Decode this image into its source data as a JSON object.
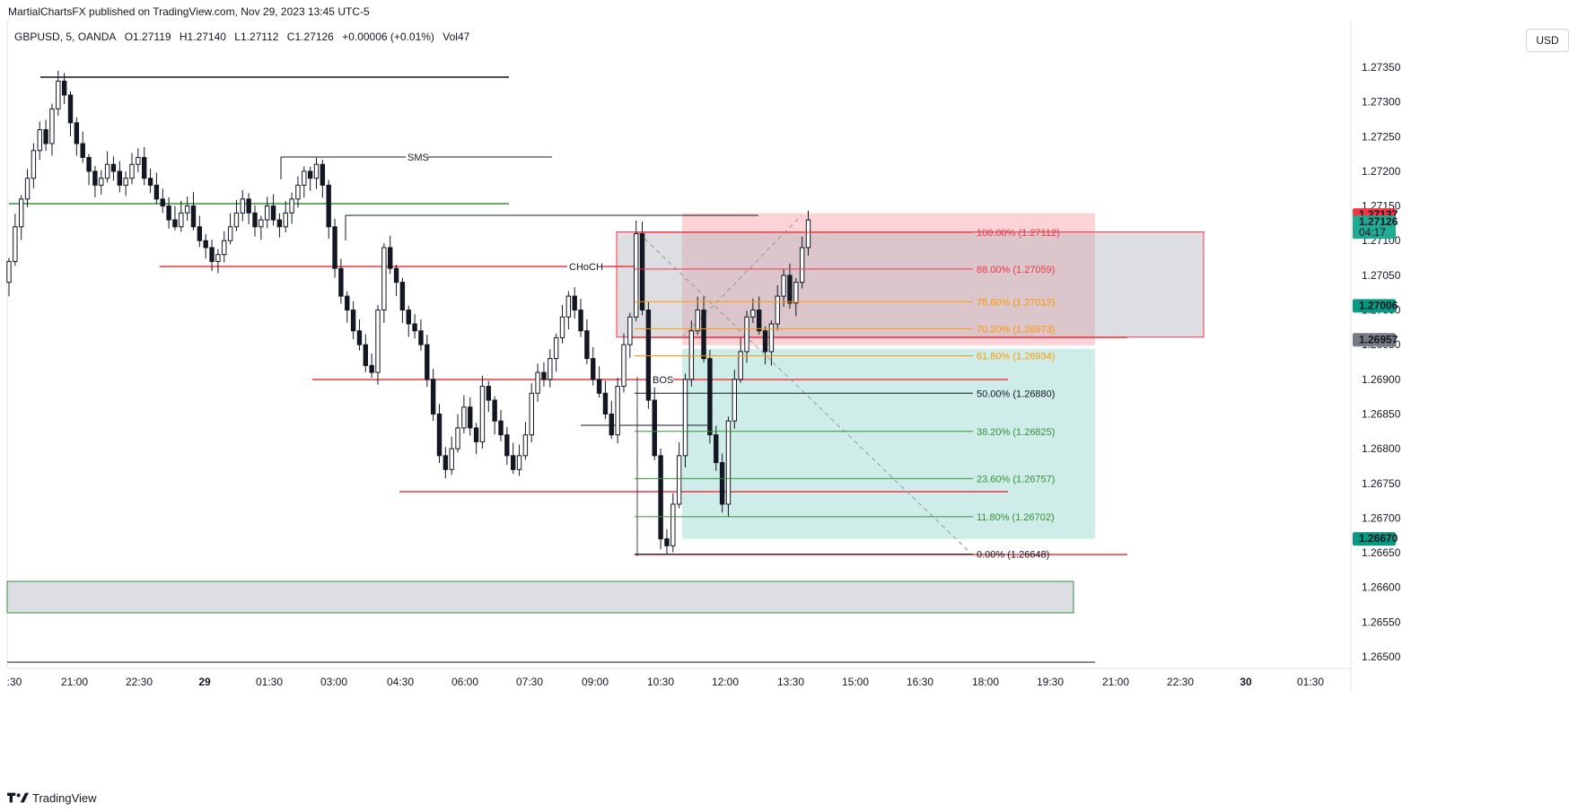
{
  "header": {
    "publisher": "MartialChartsFX published on TradingView.com, Nov 29, 2023 13:45 UTC-5"
  },
  "legend": {
    "symbol": "GBPUSD, 5, OANDA",
    "open": "O1.27119",
    "high": "H1.27140",
    "low": "L1.27112",
    "close": "C1.27126",
    "change": "+0.00006 (+0.01%)",
    "volume": "Vol47"
  },
  "currency": "USD",
  "footer": {
    "brand": "TradingView"
  },
  "chart_data": {
    "type": "candlestick",
    "timeframe": "5",
    "y_ticks": [
      1.2735,
      1.273,
      1.2725,
      1.272,
      1.2715,
      1.271,
      1.2705,
      1.27,
      1.2695,
      1.269,
      1.2685,
      1.268,
      1.2675,
      1.267,
      1.2665,
      1.266,
      1.2655,
      1.265
    ],
    "y_ticks_labels": [
      "1.27350",
      "1.27300",
      "1.27250",
      "1.27200",
      "1.27150",
      "1.27100",
      "1.27050",
      "1.27000",
      "1.26950",
      "1.26900",
      "1.26850",
      "1.26800",
      "1.26750",
      "1.26700",
      "1.26650",
      "1.26600",
      "1.26550",
      "1.26500"
    ],
    "x_ticks": [
      ":30",
      "21:00",
      "22:30",
      "29",
      "01:30",
      "03:00",
      "04:30",
      "06:00",
      "07:30",
      "09:00",
      "10:30",
      "12:00",
      "13:30",
      "15:00",
      "16:30",
      "18:00",
      "19:30",
      "21:00",
      "22:30",
      "30",
      "01:30"
    ],
    "ylim": [
      1.2647,
      1.2738
    ],
    "price_labels": [
      {
        "text": "1.27137",
        "value": 1.27137,
        "color": "#f23645"
      },
      {
        "text": "1.27126",
        "value": 1.27126,
        "color": "#22ab94",
        "countdown": "04:17"
      },
      {
        "text": "1.27006",
        "value": 1.27006,
        "color": "#089981"
      },
      {
        "text": "1.26957",
        "value": 1.26957,
        "color": "#787b86"
      },
      {
        "text": "1.26670",
        "value": 1.2667,
        "color": "#089981"
      }
    ],
    "fib_levels": [
      {
        "ratio": "100.00%",
        "price": "(1.27112)",
        "value": 1.27112,
        "color": "#f23645"
      },
      {
        "ratio": "88.00%",
        "price": "(1.27059)",
        "value": 1.27059,
        "color": "#f23645"
      },
      {
        "ratio": "78.60%",
        "price": "(1.27012)",
        "value": 1.27012,
        "color": "#ff9800"
      },
      {
        "ratio": "70.20%",
        "price": "(1.26973)",
        "value": 1.26973,
        "color": "#ff9800"
      },
      {
        "ratio": "61.80%",
        "price": "(1.26934)",
        "value": 1.26934,
        "color": "#ff9800"
      },
      {
        "ratio": "50.00%",
        "price": "(1.26880)",
        "value": 1.2688,
        "color": "#131722"
      },
      {
        "ratio": "38.20%",
        "price": "(1.26825)",
        "value": 1.26825,
        "color": "#388e3c"
      },
      {
        "ratio": "23.60%",
        "price": "(1.26757)",
        "value": 1.26757,
        "color": "#388e3c"
      },
      {
        "ratio": "11.80%",
        "price": "(1.26702)",
        "value": 1.26702,
        "color": "#388e3c"
      },
      {
        "ratio": "0.00%",
        "price": "(1.26648)",
        "value": 1.26648,
        "color": "#131722"
      }
    ],
    "annotations": [
      {
        "text": "SMS",
        "value": 1.2722
      },
      {
        "text": "CHoCH",
        "value": 1.27059
      },
      {
        "text": "BOS",
        "value": 1.269
      }
    ],
    "closes": [
      1.2707,
      1.2712,
      1.2716,
      1.2719,
      1.2723,
      1.2726,
      1.2724,
      1.2729,
      1.2733,
      1.2731,
      1.2727,
      1.2724,
      1.2722,
      1.272,
      1.2718,
      1.2719,
      1.2721,
      1.272,
      1.2718,
      1.2719,
      1.2721,
      1.2722,
      1.2719,
      1.2718,
      1.2716,
      1.2715,
      1.2713,
      1.2712,
      1.2714,
      1.2715,
      1.2712,
      1.271,
      1.2709,
      1.2707,
      1.2708,
      1.271,
      1.2712,
      1.2714,
      1.2716,
      1.2714,
      1.2712,
      1.2713,
      1.2715,
      1.2713,
      1.2712,
      1.2714,
      1.2716,
      1.2718,
      1.272,
      1.2719,
      1.2721,
      1.2718,
      1.2712,
      1.2706,
      1.2702,
      1.27,
      1.2697,
      1.2695,
      1.2692,
      1.2691,
      1.27,
      1.2709,
      1.2706,
      1.2704,
      1.27,
      1.2698,
      1.2697,
      1.2695,
      1.269,
      1.2685,
      1.2679,
      1.2677,
      1.268,
      1.2683,
      1.2686,
      1.2683,
      1.2681,
      1.2689,
      1.2687,
      1.2684,
      1.2682,
      1.2679,
      1.2677,
      1.2679,
      1.2682,
      1.2688,
      1.2691,
      1.269,
      1.2693,
      1.2696,
      1.2699,
      1.2702,
      1.27,
      1.2697,
      1.2693,
      1.269,
      1.2688,
      1.2685,
      1.2682,
      1.2689,
      1.2695,
      1.2699,
      1.2711,
      1.27,
      1.2687,
      1.2679,
      1.2667,
      1.2666,
      1.2672,
      1.2679,
      1.269,
      1.2697,
      1.27,
      1.2693,
      1.2682,
      1.2678,
      1.2672,
      1.2684,
      1.269,
      1.2694,
      1.2699,
      1.27,
      1.2697,
      1.2694,
      1.2698,
      1.2702,
      1.2705,
      1.2701,
      1.2704,
      1.2709,
      1.2713
    ]
  }
}
